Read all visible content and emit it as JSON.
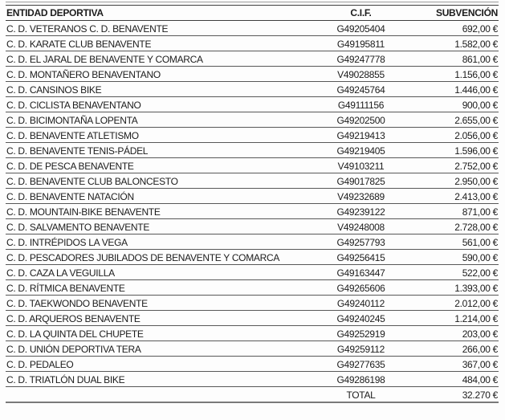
{
  "table": {
    "columns": {
      "entity": "ENTIDAD DEPORTIVA",
      "cif": "C.I.F.",
      "subsidy": "SUBVENCIÓN"
    },
    "rows": [
      {
        "entity": "C. D. VETERANOS C. D. BENAVENTE",
        "cif": "G49205404",
        "subsidy": "692,00 €"
      },
      {
        "entity": "C. D. KARATE CLUB BENAVENTE",
        "cif": "G49195811",
        "subsidy": "1.582,00 €"
      },
      {
        "entity": "C. D. EL JARAL DE BENAVENTE Y COMARCA",
        "cif": "G49247778",
        "subsidy": "861,00 €"
      },
      {
        "entity": "C. D. MONTAÑERO BENAVENTANO",
        "cif": "V49028855",
        "subsidy": "1.156,00 €"
      },
      {
        "entity": "C. D. CANSINOS BIKE",
        "cif": "G49245764",
        "subsidy": "1.446,00 €"
      },
      {
        "entity": "C. D. CICLISTA BENAVENTANO",
        "cif": "G49111156",
        "subsidy": "900,00 €"
      },
      {
        "entity": "C. D. BICIMONTAÑA LOPENTA",
        "cif": "G49202500",
        "subsidy": "2.655,00 €"
      },
      {
        "entity": "C. D. BENAVENTE ATLETISMO",
        "cif": "G49219413",
        "subsidy": "2.056,00 €"
      },
      {
        "entity": "C. D. BENAVENTE TENIS-PÁDEL",
        "cif": "G49219405",
        "subsidy": "1.596,00 €"
      },
      {
        "entity": "C. D. DE PESCA BENAVENTE",
        "cif": "V49103211",
        "subsidy": "2.752,00 €"
      },
      {
        "entity": "C. D. BENAVENTE CLUB BALONCESTO",
        "cif": "G49017825",
        "subsidy": "2.950,00 €"
      },
      {
        "entity": "C. D. BENAVENTE NATACIÓN",
        "cif": "V49232689",
        "subsidy": "2.413,00 €"
      },
      {
        "entity": "C. D. MOUNTAIN-BIKE BENAVENTE",
        "cif": "G49239122",
        "subsidy": "871,00 €"
      },
      {
        "entity": "C. D. SALVAMENTO BENAVENTE",
        "cif": "V49248008",
        "subsidy": "2.728,00 €"
      },
      {
        "entity": "C. D. INTRÉPIDOS LA VEGA",
        "cif": "G49257793",
        "subsidy": "561,00 €"
      },
      {
        "entity": "C. D. PESCADORES JUBILADOS DE BENAVENTE Y COMARCA",
        "cif": "G49256415",
        "subsidy": "590,00 €"
      },
      {
        "entity": "C. D. CAZA LA VEGUILLA",
        "cif": "G49163447",
        "subsidy": "522,00 €"
      },
      {
        "entity": "C. D. RÍTMICA BENAVENTE",
        "cif": "G49265606",
        "subsidy": "1.393,00 €"
      },
      {
        "entity": "C. D. TAEKWONDO BENAVENTE",
        "cif": "G49240112",
        "subsidy": "2.012,00 €"
      },
      {
        "entity": "C. D. ARQUEROS BENAVENTE",
        "cif": "G49240245",
        "subsidy": "1.214,00 €"
      },
      {
        "entity": "C. D. LA QUINTA DEL CHUPETE",
        "cif": "G49252919",
        "subsidy": "203,00 €"
      },
      {
        "entity": "C. D. UNIÓN DEPORTIVA TERA",
        "cif": "G49259112",
        "subsidy": "266,00 €"
      },
      {
        "entity": "C. D. PEDALEO",
        "cif": "G49277635",
        "subsidy": "367,00 €"
      },
      {
        "entity": "C. D. TRIATLÓN DUAL BIKE",
        "cif": "G49286198",
        "subsidy": "484,00 €"
      }
    ],
    "total_label": "TOTAL",
    "total_value": "32.270 €"
  }
}
